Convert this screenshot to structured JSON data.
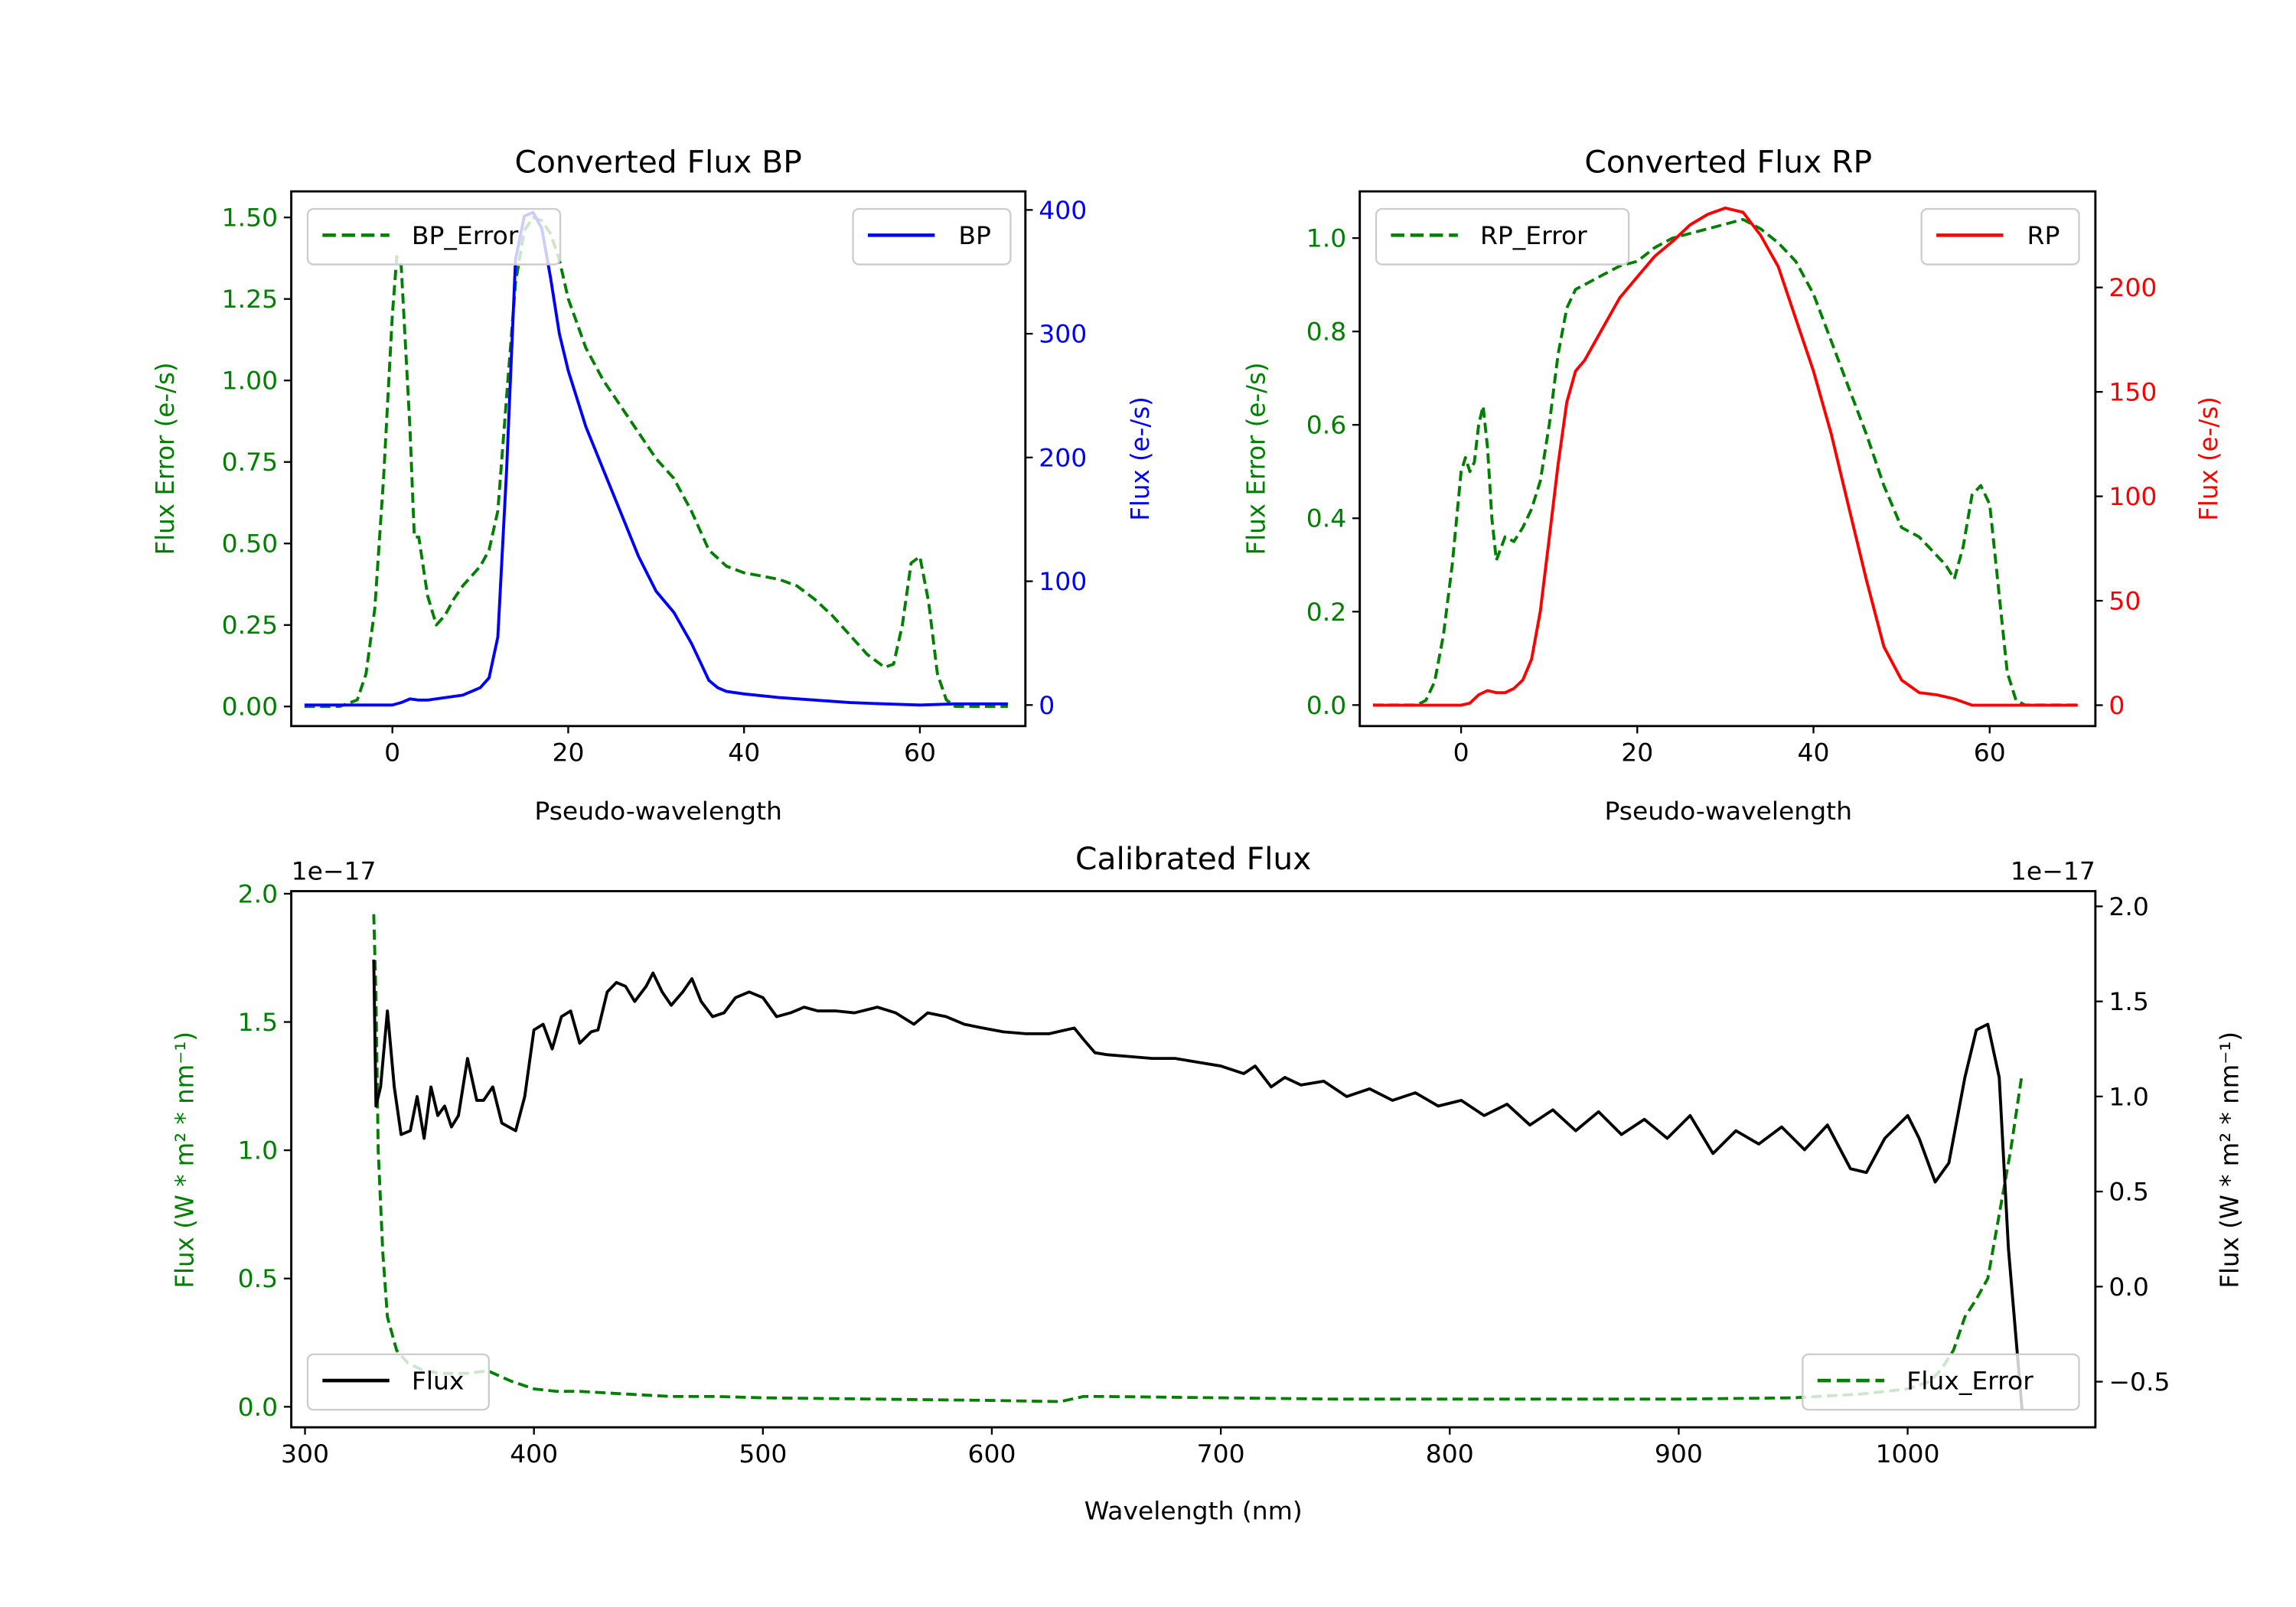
{
  "chart_data": [
    {
      "id": "bp",
      "type": "line",
      "title": "Converted Flux BP",
      "xlabel": "Pseudo-wavelength",
      "ylabel_left": "Flux Error (e-/s)",
      "ylabel_right": "Flux (e-/s)",
      "xlim": [
        -11.5,
        72
      ],
      "ylim_left": [
        -0.06,
        1.58
      ],
      "ylim_right": [
        -17,
        415
      ],
      "x_ticks": [
        0,
        20,
        40,
        60
      ],
      "y_ticks_left": [
        "0.00",
        "0.25",
        "0.50",
        "0.75",
        "1.00",
        "1.25",
        "1.50"
      ],
      "y_ticks_right": [
        "0",
        "100",
        "200",
        "300",
        "400"
      ],
      "left_color": "#008000",
      "right_color": "#0000ff",
      "legend_left": {
        "label": "BP_Error",
        "placement": "upper-left"
      },
      "legend_right": {
        "label": "BP",
        "placement": "upper-right"
      },
      "series": [
        {
          "name": "BP_Error",
          "axis": "left",
          "style": "dashed",
          "color": "#008000",
          "x": [
            -10,
            -6,
            -4,
            -3,
            -2,
            -1,
            0,
            0.5,
            1,
            2,
            2.5,
            3,
            4,
            5,
            6,
            7,
            8,
            9,
            10,
            11,
            12,
            13,
            14,
            15,
            16,
            17,
            18,
            19,
            20,
            22,
            24,
            26,
            28,
            30,
            32,
            34,
            36,
            38,
            40,
            42,
            44,
            46,
            48,
            50,
            52,
            54,
            56,
            57,
            58,
            59,
            60,
            61,
            62,
            63,
            64,
            66,
            70
          ],
          "y": [
            0,
            0,
            0.02,
            0.1,
            0.3,
            0.7,
            1.2,
            1.38,
            1.35,
            0.85,
            0.52,
            0.52,
            0.34,
            0.25,
            0.28,
            0.33,
            0.37,
            0.4,
            0.43,
            0.48,
            0.6,
            0.95,
            1.3,
            1.46,
            1.5,
            1.49,
            1.45,
            1.37,
            1.25,
            1.1,
            1.0,
            0.92,
            0.84,
            0.76,
            0.7,
            0.6,
            0.48,
            0.43,
            0.41,
            0.4,
            0.39,
            0.37,
            0.33,
            0.28,
            0.22,
            0.16,
            0.12,
            0.13,
            0.25,
            0.44,
            0.46,
            0.32,
            0.1,
            0.02,
            0,
            0,
            0
          ]
        },
        {
          "name": "BP",
          "axis": "right",
          "style": "solid",
          "color": "#0000ff",
          "x": [
            -10,
            -5,
            -2,
            0,
            1,
            2,
            3,
            4,
            6,
            8,
            10,
            11,
            12,
            13,
            14,
            15,
            16,
            17,
            18,
            19,
            20,
            22,
            24,
            26,
            28,
            30,
            32,
            34,
            35,
            36,
            37,
            38,
            40,
            44,
            48,
            52,
            56,
            60,
            64,
            70
          ],
          "y": [
            0,
            0,
            0,
            0,
            2,
            5,
            4,
            4,
            6,
            8,
            14,
            22,
            55,
            190,
            360,
            395,
            398,
            385,
            345,
            300,
            270,
            225,
            190,
            155,
            120,
            92,
            75,
            50,
            35,
            20,
            14,
            11,
            9,
            6,
            4,
            2,
            1,
            0,
            1,
            1
          ]
        }
      ]
    },
    {
      "id": "rp",
      "type": "line",
      "title": "Converted Flux RP",
      "xlabel": "Pseudo-wavelength",
      "ylabel_left": "Flux Error (e-/s)",
      "ylabel_right": "Flux (e-/s)",
      "xlim": [
        -11.5,
        72
      ],
      "ylim_left": [
        -0.045,
        1.1
      ],
      "ylim_right": [
        -10,
        246
      ],
      "x_ticks": [
        0,
        20,
        40,
        60
      ],
      "y_ticks_left": [
        "0.0",
        "0.2",
        "0.4",
        "0.6",
        "0.8",
        "1.0"
      ],
      "y_ticks_right": [
        "0",
        "50",
        "100",
        "150",
        "200"
      ],
      "left_color": "#008000",
      "right_color": "#ff0000",
      "legend_left": {
        "label": "RP_Error",
        "placement": "upper-left"
      },
      "legend_right": {
        "label": "RP",
        "placement": "upper-right"
      },
      "series": [
        {
          "name": "RP_Error",
          "axis": "left",
          "style": "dashed",
          "color": "#008000",
          "x": [
            -10,
            -5,
            -4,
            -3,
            -2,
            -1,
            0,
            0.5,
            1,
            1.5,
            2,
            2.5,
            3,
            3.5,
            4,
            5,
            6,
            7,
            8,
            9,
            10,
            11,
            12,
            13,
            14,
            16,
            18,
            20,
            22,
            24,
            26,
            28,
            30,
            32,
            34,
            36,
            38,
            40,
            42,
            44,
            46,
            48,
            50,
            52,
            54,
            55,
            56,
            57,
            58,
            59,
            60,
            61,
            62,
            63,
            64,
            66,
            70
          ],
          "y": [
            0,
            0,
            0.01,
            0.05,
            0.15,
            0.3,
            0.5,
            0.53,
            0.5,
            0.52,
            0.6,
            0.64,
            0.55,
            0.4,
            0.31,
            0.36,
            0.35,
            0.38,
            0.42,
            0.48,
            0.6,
            0.75,
            0.85,
            0.89,
            0.9,
            0.92,
            0.94,
            0.95,
            0.98,
            1.0,
            1.01,
            1.02,
            1.03,
            1.04,
            1.02,
            0.99,
            0.95,
            0.88,
            0.78,
            0.68,
            0.58,
            0.47,
            0.38,
            0.36,
            0.32,
            0.3,
            0.27,
            0.34,
            0.45,
            0.47,
            0.43,
            0.25,
            0.07,
            0.01,
            0,
            0,
            0
          ]
        },
        {
          "name": "RP",
          "axis": "right",
          "style": "solid",
          "color": "#ff0000",
          "x": [
            -10,
            -5,
            -2,
            0,
            1,
            2,
            3,
            4,
            5,
            6,
            7,
            8,
            9,
            10,
            11,
            12,
            13,
            14,
            16,
            18,
            20,
            22,
            24,
            26,
            28,
            30,
            32,
            34,
            36,
            38,
            40,
            42,
            44,
            46,
            48,
            50,
            52,
            54,
            56,
            58,
            60,
            64,
            70
          ],
          "y": [
            0,
            0,
            0,
            0,
            1,
            5,
            7,
            6,
            6,
            8,
            12,
            22,
            45,
            80,
            115,
            145,
            160,
            165,
            180,
            195,
            205,
            215,
            222,
            230,
            235,
            238,
            236,
            225,
            210,
            185,
            160,
            130,
            95,
            60,
            28,
            12,
            6,
            5,
            3,
            0,
            0,
            0,
            0
          ]
        }
      ]
    },
    {
      "id": "calibrated",
      "type": "line",
      "title": "Calibrated Flux",
      "xlabel": "Wavelength (nm)",
      "ylabel_left": "Flux (W * m² * nm⁻¹)",
      "ylabel_right": "Flux (W * m² * nm⁻¹)",
      "offset_left": "1e−17",
      "offset_right": "1e−17",
      "xlim": [
        294,
        1082
      ],
      "ylim_left": [
        -0.08,
        2.01
      ],
      "ylim_right": [
        -0.74,
        2.08
      ],
      "x_ticks": [
        300,
        400,
        500,
        600,
        700,
        800,
        900,
        1000
      ],
      "y_ticks_left": [
        "0.0",
        "0.5",
        "1.0",
        "1.5",
        "2.0"
      ],
      "y_ticks_right": [
        "−0.5",
        "0.0",
        "0.5",
        "1.0",
        "1.5",
        "2.0"
      ],
      "left_color": "#008000",
      "right_color": "#000000",
      "legend_left": {
        "label": "Flux",
        "placement": "lower-left"
      },
      "legend_right": {
        "label": "Flux_Error",
        "placement": "lower-right"
      },
      "series": [
        {
          "name": "Flux",
          "axis": "right",
          "style": "solid",
          "color": "#000000",
          "x": [
            330,
            331,
            333,
            336,
            339,
            342,
            346,
            349,
            352,
            355,
            358,
            361,
            364,
            367,
            371,
            375,
            378,
            382,
            386,
            392,
            396,
            400,
            404,
            408,
            412,
            416,
            420,
            425,
            428,
            432,
            436,
            440,
            444,
            449,
            452,
            456,
            460,
            465,
            469,
            473,
            478,
            483,
            488,
            494,
            500,
            506,
            512,
            518,
            524,
            532,
            540,
            550,
            558,
            566,
            572,
            580,
            588,
            596,
            605,
            615,
            625,
            636,
            640,
            645,
            650,
            660,
            670,
            680,
            690,
            700,
            710,
            715,
            722,
            728,
            735,
            745,
            755,
            765,
            775,
            785,
            795,
            805,
            815,
            825,
            835,
            845,
            855,
            865,
            875,
            885,
            895,
            905,
            915,
            925,
            935,
            945,
            955,
            965,
            975,
            982,
            990,
            1000,
            1005,
            1012,
            1018,
            1025,
            1030,
            1035,
            1040,
            1044,
            1050
          ],
          "y": [
            1.72,
            0.95,
            1.05,
            1.45,
            1.05,
            0.8,
            0.82,
            1.0,
            0.78,
            1.05,
            0.9,
            0.95,
            0.84,
            0.9,
            1.2,
            0.98,
            0.98,
            1.05,
            0.86,
            0.82,
            1.0,
            1.35,
            1.38,
            1.25,
            1.42,
            1.45,
            1.28,
            1.34,
            1.35,
            1.55,
            1.6,
            1.58,
            1.5,
            1.58,
            1.65,
            1.55,
            1.48,
            1.55,
            1.62,
            1.5,
            1.42,
            1.44,
            1.52,
            1.55,
            1.52,
            1.42,
            1.44,
            1.47,
            1.45,
            1.45,
            1.44,
            1.47,
            1.44,
            1.38,
            1.44,
            1.42,
            1.38,
            1.36,
            1.34,
            1.33,
            1.33,
            1.36,
            1.3,
            1.23,
            1.22,
            1.21,
            1.2,
            1.2,
            1.18,
            1.16,
            1.12,
            1.16,
            1.05,
            1.1,
            1.06,
            1.08,
            1.0,
            1.04,
            0.98,
            1.02,
            0.95,
            0.98,
            0.9,
            0.96,
            0.85,
            0.93,
            0.82,
            0.92,
            0.8,
            0.88,
            0.78,
            0.9,
            0.7,
            0.82,
            0.75,
            0.84,
            0.72,
            0.85,
            0.62,
            0.6,
            0.78,
            0.9,
            0.78,
            0.55,
            0.65,
            1.1,
            1.35,
            1.38,
            1.1,
            0.2,
            -0.65
          ]
        },
        {
          "name": "Flux_Error",
          "axis": "left",
          "style": "dashed",
          "color": "#008000",
          "x": [
            330,
            331,
            332,
            334,
            336,
            340,
            345,
            352,
            360,
            370,
            380,
            390,
            400,
            410,
            420,
            440,
            460,
            480,
            500,
            550,
            600,
            630,
            640,
            650,
            700,
            750,
            800,
            850,
            900,
            950,
            980,
            1000,
            1010,
            1015,
            1020,
            1025,
            1030,
            1035,
            1040,
            1045,
            1050
          ],
          "y": [
            1.92,
            1.6,
            1.0,
            0.6,
            0.35,
            0.22,
            0.17,
            0.14,
            0.13,
            0.13,
            0.14,
            0.1,
            0.07,
            0.06,
            0.06,
            0.05,
            0.04,
            0.04,
            0.035,
            0.03,
            0.025,
            0.02,
            0.04,
            0.04,
            0.035,
            0.03,
            0.03,
            0.03,
            0.03,
            0.035,
            0.05,
            0.07,
            0.1,
            0.15,
            0.22,
            0.35,
            0.42,
            0.5,
            0.75,
            1.0,
            1.3
          ]
        }
      ]
    }
  ]
}
